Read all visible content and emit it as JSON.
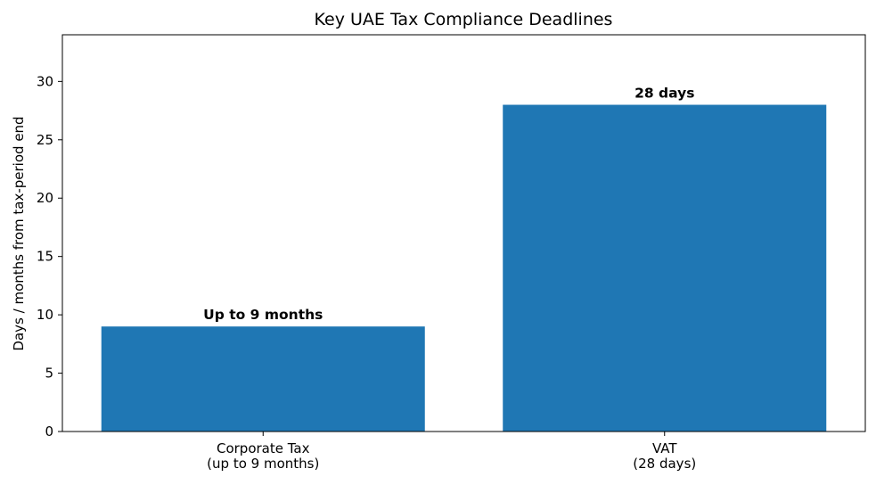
{
  "chart_data": {
    "type": "bar",
    "title": "Key UAE Tax Compliance Deadlines",
    "xlabel": "",
    "ylabel": "Days / months from tax-period end",
    "categories": [
      [
        "Corporate Tax",
        "(up to 9 months)"
      ],
      [
        "VAT",
        "(28 days)"
      ]
    ],
    "values": [
      9,
      28
    ],
    "data_labels": [
      "Up to 9 months",
      "28 days"
    ],
    "ylim": [
      0,
      34
    ],
    "yticks": [
      0,
      5,
      10,
      15,
      20,
      25,
      30
    ],
    "bar_color": "#1f77b4",
    "grid": false,
    "legend": "none"
  }
}
